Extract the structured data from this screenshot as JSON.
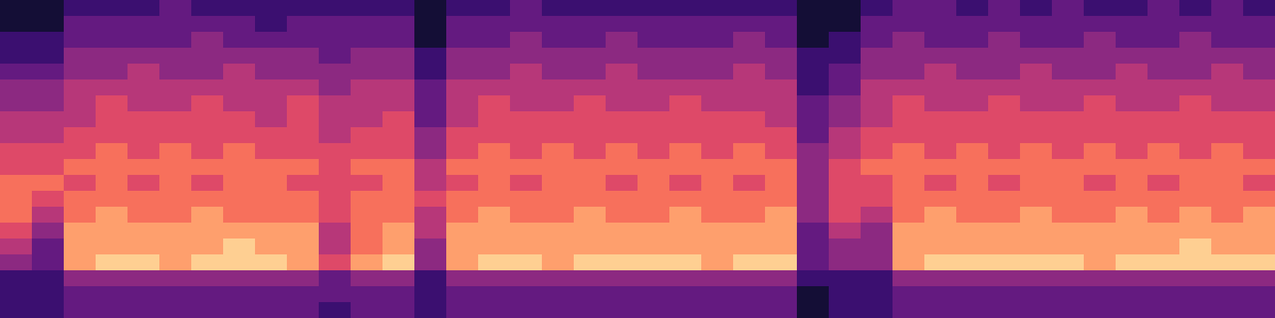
{
  "chart_data": {
    "type": "heatmap",
    "color": "magma",
    "zlim": [
      0,
      10
    ],
    "tick_labels": false,
    "cells": [
      [
        1,
        1,
        2,
        2,
        2,
        3,
        2,
        2,
        2,
        2,
        2,
        2,
        2,
        1,
        2,
        2,
        3,
        2,
        2,
        2,
        2,
        2,
        2,
        2,
        2,
        1,
        1,
        2,
        3,
        3,
        2,
        3,
        2,
        3,
        2,
        2,
        3,
        2,
        3,
        2
      ],
      [
        1,
        1,
        3,
        3,
        3,
        3,
        3,
        3,
        2,
        3,
        3,
        3,
        3,
        1,
        3,
        3,
        3,
        3,
        3,
        3,
        3,
        3,
        3,
        3,
        3,
        1,
        1,
        3,
        3,
        3,
        3,
        3,
        3,
        3,
        3,
        3,
        3,
        3,
        3,
        3
      ],
      [
        2,
        2,
        3,
        3,
        3,
        3,
        4,
        3,
        3,
        3,
        3,
        3,
        3,
        1,
        3,
        3,
        4,
        3,
        3,
        4,
        3,
        3,
        3,
        4,
        3,
        1,
        2,
        3,
        4,
        3,
        3,
        4,
        3,
        3,
        4,
        3,
        3,
        4,
        3,
        3
      ],
      [
        2,
        2,
        4,
        4,
        4,
        4,
        4,
        4,
        4,
        4,
        3,
        4,
        4,
        2,
        4,
        4,
        4,
        4,
        4,
        4,
        4,
        4,
        4,
        4,
        4,
        2,
        2,
        4,
        4,
        4,
        4,
        4,
        4,
        4,
        4,
        4,
        4,
        4,
        4,
        4
      ],
      [
        3,
        3,
        4,
        4,
        5,
        4,
        4,
        5,
        4,
        4,
        4,
        4,
        4,
        2,
        4,
        4,
        5,
        4,
        4,
        5,
        4,
        4,
        4,
        5,
        4,
        2,
        3,
        4,
        4,
        5,
        4,
        4,
        5,
        4,
        4,
        5,
        4,
        4,
        5,
        4
      ],
      [
        4,
        4,
        5,
        5,
        5,
        5,
        5,
        5,
        5,
        5,
        4,
        5,
        5,
        3,
        5,
        5,
        5,
        5,
        5,
        5,
        5,
        5,
        5,
        5,
        5,
        2,
        3,
        5,
        5,
        5,
        5,
        5,
        5,
        5,
        5,
        5,
        5,
        5,
        5,
        5
      ],
      [
        4,
        4,
        5,
        6,
        5,
        5,
        6,
        5,
        5,
        6,
        5,
        5,
        5,
        3,
        5,
        6,
        5,
        5,
        6,
        5,
        5,
        6,
        5,
        5,
        5,
        3,
        4,
        5,
        6,
        5,
        5,
        6,
        5,
        5,
        6,
        5,
        5,
        6,
        5,
        5
      ],
      [
        5,
        5,
        5,
        6,
        6,
        6,
        6,
        6,
        5,
        6,
        5,
        5,
        6,
        3,
        5,
        6,
        6,
        6,
        6,
        6,
        6,
        6,
        6,
        6,
        5,
        3,
        4,
        5,
        6,
        6,
        6,
        6,
        6,
        6,
        6,
        6,
        6,
        6,
        6,
        6
      ],
      [
        5,
        5,
        6,
        6,
        6,
        6,
        6,
        6,
        6,
        6,
        5,
        6,
        6,
        4,
        6,
        6,
        6,
        6,
        6,
        6,
        6,
        6,
        6,
        6,
        6,
        3,
        5,
        6,
        6,
        6,
        6,
        6,
        6,
        6,
        6,
        6,
        6,
        6,
        6,
        6
      ],
      [
        6,
        6,
        6,
        7,
        6,
        7,
        6,
        7,
        6,
        6,
        6,
        6,
        6,
        4,
        6,
        7,
        6,
        7,
        6,
        7,
        6,
        7,
        6,
        7,
        6,
        4,
        5,
        6,
        7,
        6,
        7,
        6,
        7,
        6,
        7,
        6,
        7,
        6,
        7,
        6
      ],
      [
        6,
        6,
        7,
        7,
        7,
        7,
        7,
        7,
        7,
        7,
        6,
        7,
        7,
        5,
        7,
        7,
        7,
        7,
        7,
        7,
        7,
        7,
        7,
        7,
        7,
        4,
        6,
        7,
        7,
        7,
        7,
        7,
        7,
        7,
        7,
        7,
        7,
        7,
        7,
        7
      ],
      [
        7,
        7,
        6,
        7,
        6,
        7,
        6,
        7,
        7,
        6,
        6,
        6,
        7,
        5,
        6,
        7,
        6,
        7,
        7,
        6,
        7,
        6,
        7,
        6,
        7,
        4,
        6,
        6,
        7,
        6,
        7,
        6,
        7,
        7,
        6,
        7,
        6,
        7,
        7,
        6
      ],
      [
        7,
        6,
        7,
        7,
        7,
        7,
        7,
        7,
        7,
        7,
        6,
        7,
        7,
        6,
        7,
        7,
        7,
        7,
        7,
        7,
        7,
        7,
        7,
        7,
        7,
        4,
        6,
        6,
        7,
        7,
        7,
        7,
        7,
        7,
        7,
        7,
        7,
        7,
        7,
        7
      ],
      [
        7,
        5,
        7,
        8,
        7,
        7,
        8,
        7,
        7,
        7,
        6,
        7,
        7,
        5,
        7,
        8,
        7,
        7,
        8,
        7,
        7,
        8,
        7,
        7,
        8,
        4,
        6,
        5,
        7,
        8,
        7,
        7,
        8,
        7,
        7,
        8,
        7,
        8,
        7,
        8
      ],
      [
        6,
        4,
        8,
        8,
        8,
        8,
        8,
        8,
        8,
        8,
        5,
        7,
        8,
        5,
        8,
        8,
        8,
        8,
        8,
        8,
        8,
        8,
        8,
        8,
        8,
        3,
        5,
        4,
        8,
        8,
        8,
        8,
        8,
        8,
        8,
        8,
        8,
        8,
        8,
        8
      ],
      [
        5,
        3,
        8,
        8,
        8,
        8,
        8,
        9,
        8,
        8,
        5,
        7,
        8,
        4,
        8,
        8,
        8,
        8,
        8,
        8,
        8,
        8,
        8,
        8,
        8,
        3,
        4,
        4,
        8,
        8,
        8,
        8,
        8,
        8,
        8,
        8,
        8,
        9,
        8,
        8
      ],
      [
        4,
        3,
        8,
        9,
        9,
        8,
        9,
        9,
        9,
        8,
        6,
        8,
        9,
        4,
        8,
        9,
        9,
        8,
        9,
        9,
        9,
        9,
        8,
        9,
        9,
        3,
        4,
        4,
        8,
        9,
        9,
        9,
        9,
        9,
        8,
        9,
        9,
        9,
        9,
        9
      ],
      [
        2,
        2,
        4,
        4,
        4,
        4,
        4,
        4,
        4,
        4,
        3,
        4,
        4,
        2,
        4,
        4,
        4,
        4,
        4,
        4,
        4,
        4,
        4,
        4,
        4,
        2,
        2,
        2,
        4,
        4,
        4,
        4,
        4,
        4,
        4,
        4,
        4,
        4,
        4,
        4
      ],
      [
        2,
        2,
        3,
        3,
        3,
        3,
        3,
        3,
        3,
        3,
        3,
        3,
        3,
        2,
        3,
        3,
        3,
        3,
        3,
        3,
        3,
        3,
        3,
        3,
        3,
        1,
        2,
        2,
        3,
        3,
        3,
        3,
        3,
        3,
        3,
        3,
        3,
        3,
        3,
        3
      ],
      [
        2,
        2,
        3,
        3,
        3,
        3,
        3,
        3,
        3,
        3,
        2,
        3,
        3,
        2,
        3,
        3,
        3,
        3,
        3,
        3,
        3,
        3,
        3,
        3,
        3,
        1,
        2,
        2,
        3,
        3,
        3,
        3,
        3,
        3,
        3,
        3,
        3,
        3,
        3,
        3
      ]
    ]
  }
}
